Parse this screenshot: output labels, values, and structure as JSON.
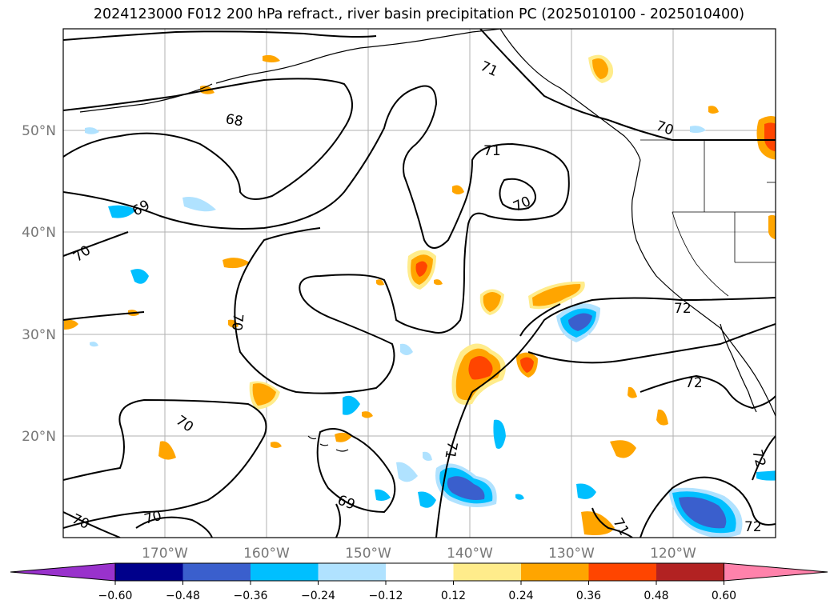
{
  "title": "2024123000 F012 200 hPa refract., river basin precipitation PC (2025010100 - 2025010400)",
  "map": {
    "lat_labels": [
      "50°N",
      "40°N",
      "30°N",
      "20°N"
    ],
    "lon_labels": [
      "170°W",
      "160°W",
      "150°W",
      "140°W",
      "130°W",
      "120°W"
    ],
    "contour_labels": [
      "71",
      "68",
      "71",
      "70",
      "70",
      "69",
      "70",
      "70",
      "72",
      "70",
      "72",
      "71",
      "70",
      "70",
      "69",
      "72",
      "72",
      "71",
      "70"
    ],
    "colors": {
      "coast": "#000000",
      "grid": "#b0b0b0",
      "contour": "#000000"
    }
  },
  "colorbar": {
    "ticks": [
      "−0.60",
      "−0.48",
      "−0.36",
      "−0.24",
      "−0.12",
      "0.12",
      "0.24",
      "0.36",
      "0.48",
      "0.60"
    ],
    "colors": [
      "#9932cc",
      "#00008b",
      "#3a5fcd",
      "#00bfff",
      "#b0e2ff",
      "#ffffff",
      "#ffec8b",
      "#ffa500",
      "#ff4500",
      "#b22222",
      "#ff82ab"
    ]
  }
}
